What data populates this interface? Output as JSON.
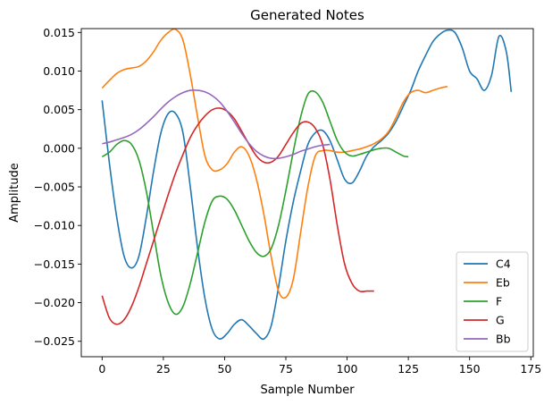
{
  "chart_data": {
    "type": "line",
    "title": "Generated Notes",
    "xlabel": "Sample Number",
    "ylabel": "Amplitude",
    "xlim": [
      -8.5,
      176
    ],
    "ylim": [
      -0.027,
      0.0155
    ],
    "xticks": [
      0,
      25,
      50,
      75,
      100,
      125,
      150,
      175
    ],
    "xtick_labels": [
      "0",
      "25",
      "50",
      "75",
      "100",
      "125",
      "150",
      "175"
    ],
    "yticks": [
      -0.025,
      -0.02,
      -0.015,
      -0.01,
      -0.005,
      0.0,
      0.005,
      0.01,
      0.015
    ],
    "ytick_labels": [
      "−0.025",
      "−0.020",
      "−0.015",
      "−0.010",
      "−0.005",
      "0.000",
      "0.005",
      "0.010",
      "0.015"
    ],
    "grid": false,
    "legend_position": "bottom-right",
    "series": [
      {
        "name": "C4",
        "color": "#1f77b4",
        "x": [
          0,
          3,
          6,
          9,
          12,
          15,
          18,
          21,
          24,
          27,
          30,
          33,
          36,
          39,
          42,
          45,
          48,
          51,
          54,
          57,
          60,
          63,
          66,
          69,
          72,
          75,
          78,
          81,
          84,
          87,
          90,
          93,
          96,
          99,
          102,
          105,
          108,
          111,
          114,
          117,
          120,
          123,
          126,
          129,
          132,
          135,
          138,
          141,
          144,
          147,
          150,
          153,
          156,
          159,
          162,
          165,
          167
        ],
        "y": [
          0.0062,
          -0.002,
          -0.009,
          -0.014,
          -0.0155,
          -0.014,
          -0.009,
          -0.003,
          0.002,
          0.0045,
          0.0045,
          0.002,
          -0.005,
          -0.013,
          -0.0195,
          -0.0235,
          -0.0247,
          -0.024,
          -0.0228,
          -0.0222,
          -0.023,
          -0.024,
          -0.0247,
          -0.023,
          -0.018,
          -0.012,
          -0.007,
          -0.003,
          0.0005,
          0.002,
          0.0023,
          0.001,
          -0.0015,
          -0.004,
          -0.0045,
          -0.003,
          -0.001,
          0.0002,
          0.001,
          0.002,
          0.0035,
          0.0055,
          0.0075,
          0.01,
          0.012,
          0.0138,
          0.0148,
          0.0153,
          0.015,
          0.013,
          0.01,
          0.009,
          0.0075,
          0.0095,
          0.0145,
          0.0125,
          0.0073
        ]
      },
      {
        "name": "Eb",
        "color": "#ff7f0e",
        "x": [
          0,
          3,
          6,
          9,
          12,
          15,
          18,
          21,
          24,
          27,
          30,
          33,
          36,
          39,
          42,
          45,
          48,
          51,
          54,
          57,
          60,
          63,
          66,
          69,
          72,
          75,
          78,
          81,
          84,
          87,
          90,
          93,
          96,
          99,
          102,
          105,
          108,
          111,
          114,
          117,
          120,
          123,
          126,
          129,
          132,
          135,
          138,
          141
        ],
        "y": [
          0.0078,
          0.0088,
          0.0097,
          0.0102,
          0.0104,
          0.0106,
          0.0113,
          0.0125,
          0.014,
          0.015,
          0.0154,
          0.014,
          0.0095,
          0.004,
          -0.001,
          -0.0028,
          -0.0028,
          -0.002,
          -0.0005,
          0.0002,
          -0.001,
          -0.004,
          -0.0085,
          -0.014,
          -0.0185,
          -0.0193,
          -0.017,
          -0.011,
          -0.005,
          -0.001,
          -0.0003,
          -0.0003,
          -0.0005,
          -0.0005,
          -0.0003,
          -0.0001,
          0.0002,
          0.0006,
          0.0012,
          0.0022,
          0.004,
          0.006,
          0.0072,
          0.0075,
          0.0072,
          0.0075,
          0.0078,
          0.008
        ]
      },
      {
        "name": "F",
        "color": "#2ca02c",
        "x": [
          0,
          3,
          6,
          9,
          12,
          15,
          18,
          21,
          24,
          27,
          30,
          33,
          36,
          39,
          42,
          45,
          48,
          51,
          54,
          57,
          60,
          63,
          66,
          69,
          72,
          75,
          78,
          81,
          84,
          87,
          90,
          93,
          96,
          99,
          102,
          105,
          108,
          111,
          114,
          117,
          120,
          123,
          125
        ],
        "y": [
          -0.0011,
          -0.0005,
          0.0005,
          0.001,
          0.0005,
          -0.0015,
          -0.0055,
          -0.011,
          -0.0165,
          -0.02,
          -0.0215,
          -0.0205,
          -0.0175,
          -0.0135,
          -0.0095,
          -0.0068,
          -0.0062,
          -0.0066,
          -0.008,
          -0.01,
          -0.012,
          -0.0135,
          -0.014,
          -0.013,
          -0.01,
          -0.0055,
          -0.0005,
          0.004,
          0.007,
          0.0073,
          0.006,
          0.0035,
          0.001,
          -0.0005,
          -0.001,
          -0.0008,
          -0.0005,
          -0.0002,
          0.0,
          0.0,
          -0.0005,
          -0.001,
          -0.0011
        ]
      },
      {
        "name": "G",
        "color": "#d62728",
        "x": [
          0,
          3,
          6,
          9,
          12,
          15,
          18,
          21,
          24,
          27,
          30,
          33,
          36,
          39,
          42,
          45,
          48,
          51,
          54,
          57,
          60,
          63,
          66,
          69,
          72,
          75,
          78,
          81,
          84,
          87,
          90,
          93,
          96,
          99,
          102,
          105,
          108,
          111
        ],
        "y": [
          -0.0191,
          -0.022,
          -0.0228,
          -0.0222,
          -0.0205,
          -0.018,
          -0.015,
          -0.012,
          -0.009,
          -0.006,
          -0.0032,
          -0.0008,
          0.0014,
          0.003,
          0.0042,
          0.005,
          0.0052,
          0.0048,
          0.0038,
          0.0022,
          0.0005,
          -0.001,
          -0.0018,
          -0.0018,
          -0.001,
          0.0005,
          0.002,
          0.0032,
          0.0034,
          0.0026,
          0.0005,
          -0.004,
          -0.01,
          -0.015,
          -0.0175,
          -0.0185,
          -0.0185,
          -0.0185
        ]
      },
      {
        "name": "Bb",
        "color": "#9467bd",
        "x": [
          0,
          3,
          6,
          9,
          12,
          15,
          18,
          21,
          24,
          27,
          30,
          33,
          36,
          39,
          42,
          45,
          48,
          51,
          54,
          57,
          60,
          63,
          66,
          69,
          72,
          75,
          78,
          81,
          84,
          87,
          90,
          93
        ],
        "y": [
          0.0006,
          0.0008,
          0.0011,
          0.0014,
          0.0018,
          0.0024,
          0.0032,
          0.0041,
          0.0051,
          0.006,
          0.0067,
          0.0072,
          0.0075,
          0.0075,
          0.0073,
          0.0068,
          0.006,
          0.0048,
          0.0034,
          0.0019,
          0.0006,
          -0.0004,
          -0.001,
          -0.0013,
          -0.0013,
          -0.0011,
          -0.0008,
          -0.0004,
          -0.0001,
          0.0002,
          0.0004,
          0.0005
        ]
      }
    ]
  }
}
